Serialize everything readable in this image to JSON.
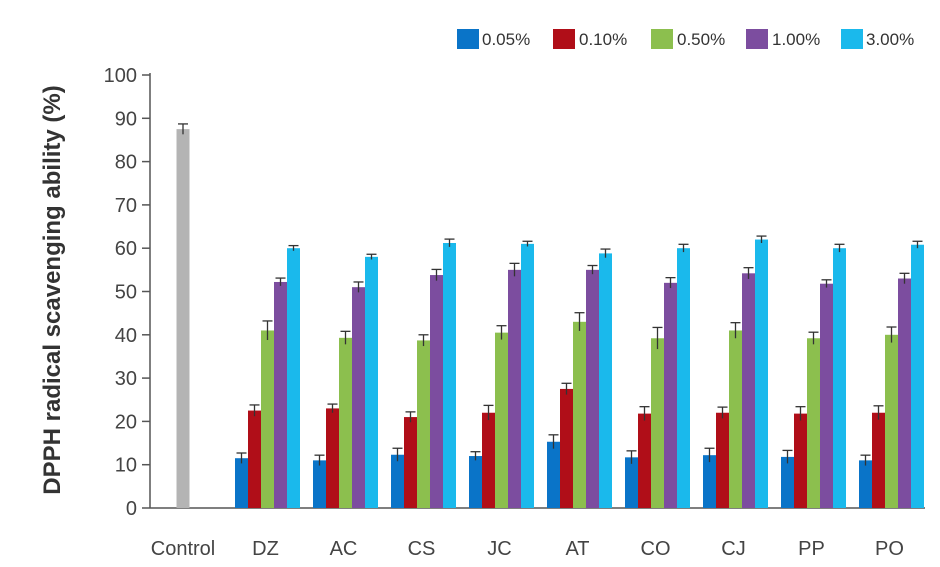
{
  "chart_data": {
    "type": "bar",
    "ylabel": "DPPH radical scavenging ability (%)",
    "xlabel": "",
    "ylim": [
      0,
      100
    ],
    "yticks": [
      0,
      10,
      20,
      30,
      40,
      50,
      60,
      70,
      80,
      90,
      100
    ],
    "legend_position": "top-right",
    "control": {
      "label": "Control",
      "value": 87.5,
      "error": 1.2,
      "color": "#b4b4b4"
    },
    "categories": [
      "DZ",
      "AC",
      "CS",
      "JC",
      "AT",
      "CO",
      "CJ",
      "PP",
      "PO"
    ],
    "series": [
      {
        "name": "0.05%",
        "color": "#0a74c8",
        "values": [
          11.5,
          11,
          12.3,
          12,
          15.3,
          11.7,
          12.2,
          11.8,
          11
        ],
        "errors": [
          1.2,
          1.2,
          1.5,
          1.0,
          1.6,
          1.5,
          1.6,
          1.5,
          1.2
        ]
      },
      {
        "name": "0.10%",
        "color": "#b00e18",
        "values": [
          22.5,
          23,
          21,
          22,
          27.5,
          21.8,
          22,
          21.8,
          22
        ],
        "errors": [
          1.3,
          1.0,
          1.2,
          1.7,
          1.3,
          1.6,
          1.3,
          1.6,
          1.6
        ]
      },
      {
        "name": "0.50%",
        "color": "#8cbf4e",
        "values": [
          41,
          39.3,
          38.7,
          40.5,
          43,
          39.2,
          41,
          39.2,
          40
        ],
        "errors": [
          2.2,
          1.5,
          1.3,
          1.6,
          2.1,
          2.5,
          1.8,
          1.4,
          1.8
        ]
      },
      {
        "name": "1.00%",
        "color": "#7c4d9f",
        "values": [
          52.2,
          51,
          53.8,
          55,
          55,
          52,
          54.2,
          51.8,
          53
        ],
        "errors": [
          0.9,
          1.2,
          1.3,
          1.5,
          1.0,
          1.2,
          1.3,
          0.9,
          1.2
        ]
      },
      {
        "name": "3.00%",
        "color": "#1ab9ec",
        "values": [
          60,
          58,
          61.2,
          61,
          58.8,
          60,
          62,
          60,
          60.8
        ],
        "errors": [
          0.6,
          0.6,
          0.9,
          0.6,
          1.0,
          0.9,
          0.8,
          0.9,
          0.8
        ]
      }
    ]
  }
}
